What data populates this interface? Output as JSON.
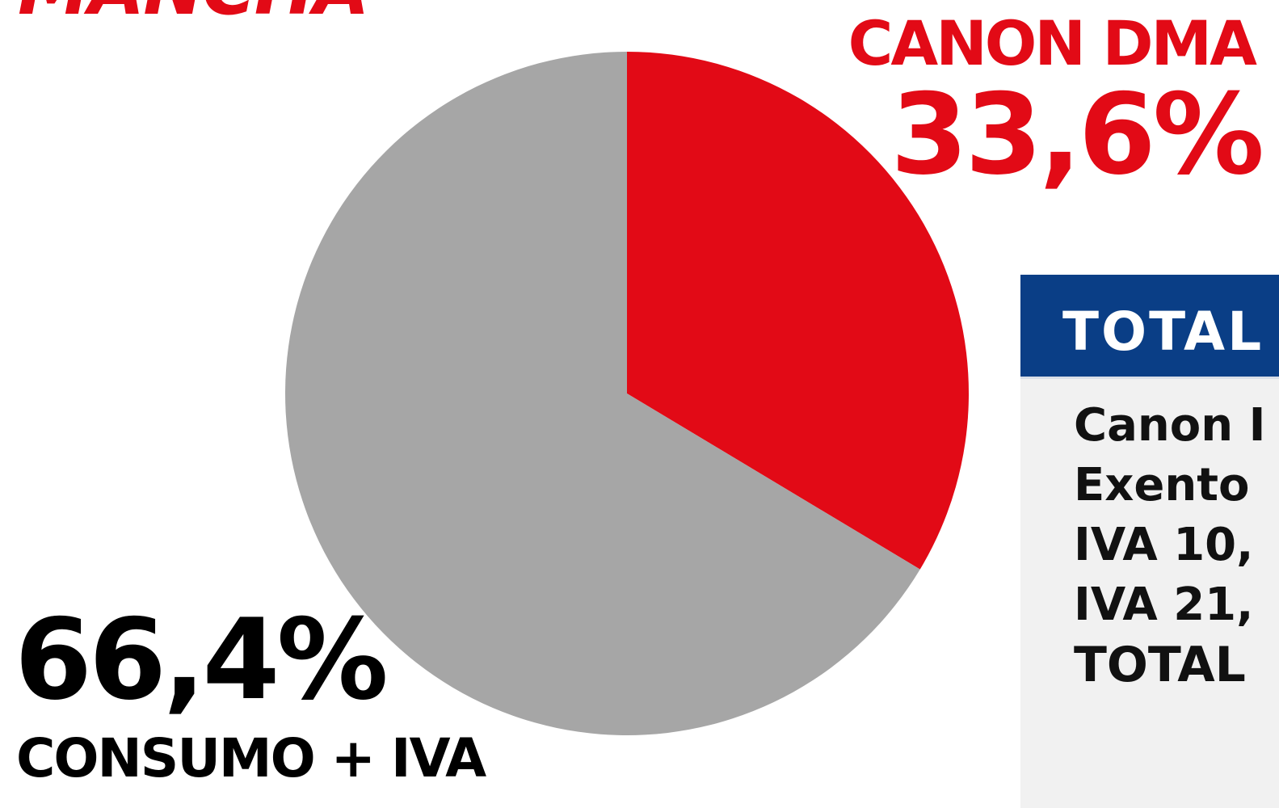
{
  "title": "MANCHA",
  "colors": {
    "accent": "#e20a16",
    "slice_other": "#a6a6a6",
    "invoice_header": "#0a3e86"
  },
  "labels": {
    "canon_name": "CANON DMA",
    "canon_pct": "33,6%",
    "consumo_pct": "66,4%",
    "consumo_name": "CONSUMO + IVA"
  },
  "invoice": {
    "header": "TOTAL",
    "rows": [
      "Canon I",
      "Exento",
      "IVA 10,",
      "IVA 21,",
      "TOTAL"
    ]
  },
  "chart_data": {
    "type": "pie",
    "title": "MANCHA",
    "slices": [
      {
        "label": "CANON DMA",
        "value": 33.6,
        "color": "#e20a16"
      },
      {
        "label": "CONSUMO + IVA",
        "value": 66.4,
        "color": "#a6a6a6"
      }
    ]
  }
}
